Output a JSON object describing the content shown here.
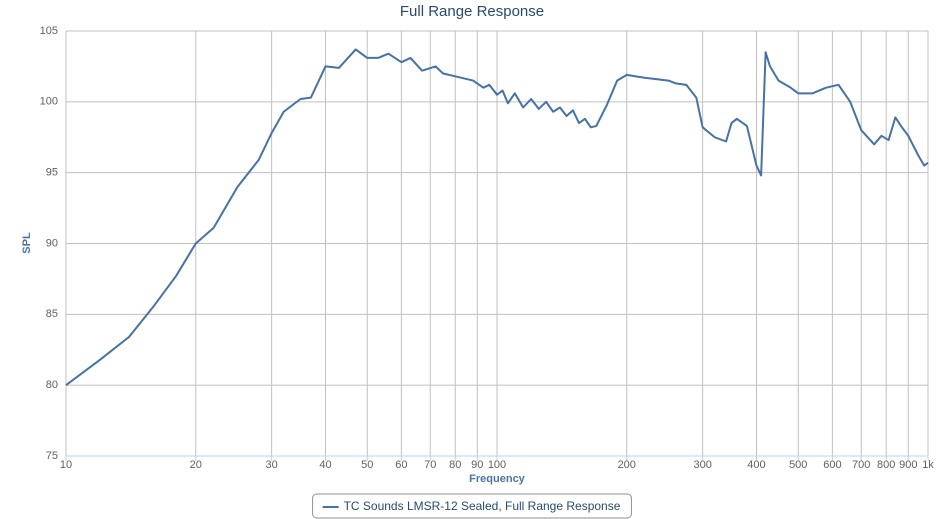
{
  "chart_data": {
    "type": "line",
    "title": "Full Range Response",
    "x_label": "Frequency",
    "y_label": "SPL",
    "x_scale": "log",
    "grid": true,
    "legend": "bottom",
    "xlim": [
      10,
      1000
    ],
    "ylim": [
      75,
      105
    ],
    "xticks": [
      10,
      20,
      30,
      40,
      50,
      60,
      70,
      80,
      90,
      100,
      200,
      300,
      400,
      500,
      600,
      700,
      800,
      900,
      {
        "value": 1000,
        "label": "1k"
      }
    ],
    "yticks": [
      75,
      80,
      85,
      90,
      95,
      100,
      105
    ],
    "x": [
      10,
      12,
      14,
      16,
      18,
      20,
      22,
      25,
      28,
      30,
      32,
      35,
      37,
      40,
      43,
      47,
      50,
      53,
      56,
      60,
      63,
      67,
      72,
      75,
      80,
      88,
      93,
      96,
      100,
      103,
      106,
      110,
      115,
      120,
      125,
      130,
      135,
      140,
      145,
      150,
      155,
      160,
      165,
      170,
      180,
      190,
      200,
      220,
      250,
      260,
      275,
      290,
      300,
      320,
      340,
      350,
      360,
      380,
      400,
      410,
      420,
      430,
      450,
      480,
      500,
      540,
      580,
      620,
      660,
      700,
      750,
      780,
      810,
      840,
      870,
      900,
      950,
      980,
      1000
    ],
    "series": [
      {
        "name": "TC Sounds LMSR-12 Sealed, Full Range Response",
        "color": "#4572a7",
        "values": [
          80.0,
          81.8,
          83.4,
          85.6,
          87.7,
          90.0,
          91.1,
          94.0,
          95.9,
          97.8,
          99.3,
          100.2,
          100.3,
          102.5,
          102.4,
          103.7,
          103.1,
          103.1,
          103.4,
          102.8,
          103.1,
          102.2,
          102.5,
          102.0,
          101.8,
          101.5,
          101.0,
          101.2,
          100.5,
          100.8,
          99.9,
          100.6,
          99.6,
          100.2,
          99.5,
          100.0,
          99.3,
          99.6,
          99.0,
          99.4,
          98.5,
          98.8,
          98.2,
          98.3,
          99.8,
          101.5,
          101.9,
          101.7,
          101.5,
          101.3,
          101.2,
          100.3,
          98.2,
          97.5,
          97.2,
          98.5,
          98.8,
          98.3,
          95.5,
          94.8,
          103.5,
          102.5,
          101.5,
          101.0,
          100.6,
          100.6,
          101.0,
          101.2,
          100.0,
          98.0,
          97.0,
          97.6,
          97.3,
          98.9,
          98.2,
          97.6,
          96.2,
          95.5,
          95.7
        ]
      }
    ]
  }
}
